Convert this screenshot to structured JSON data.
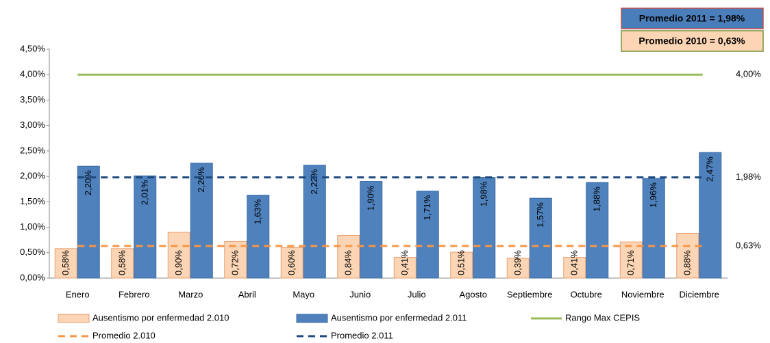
{
  "chart_data": {
    "type": "bar",
    "categories": [
      "Enero",
      "Febrero",
      "Marzo",
      "Abril",
      "Mayo",
      "Junio",
      "Julio",
      "Agosto",
      "Septiembre",
      "Octubre",
      "Noviembre",
      "Diciembre"
    ],
    "series": [
      {
        "name": "Ausentismo por enfermedad 2.010",
        "kind": "bar",
        "color": "#fbd5b5",
        "stroke": "#e8a070",
        "values": [
          0.58,
          0.58,
          0.9,
          0.72,
          0.6,
          0.84,
          0.41,
          0.51,
          0.39,
          0.41,
          0.71,
          0.88
        ],
        "value_labels": [
          "0,58%",
          "0,58%",
          "0,90%",
          "0,72%",
          "0,60%",
          "0,84%",
          "0,41%",
          "0,51%",
          "0,39%",
          "0,41%",
          "0,71%",
          "0,88%"
        ]
      },
      {
        "name": "Ausentismo por enfermedad 2.011",
        "kind": "bar",
        "color": "#4f81bd",
        "stroke": "#3a6aa5",
        "values": [
          2.2,
          2.01,
          2.26,
          1.63,
          2.22,
          1.9,
          1.71,
          1.98,
          1.57,
          1.88,
          1.96,
          2.47
        ],
        "value_labels": [
          "2,20%",
          "2,01%",
          "2,26%",
          "1,63%",
          "2,22%",
          "1,90%",
          "1,71%",
          "1,98%",
          "1,57%",
          "1,88%",
          "1,96%",
          "2,47%"
        ]
      },
      {
        "name": "Rango Max CEPIS",
        "kind": "line",
        "color": "#9bbb59",
        "dash": false,
        "value": 4.0,
        "value_label": "4,00%",
        "label_color": "#4cae4c"
      },
      {
        "name": "Promedio 2.010",
        "kind": "line",
        "color": "#f79646",
        "dash": true,
        "value": 0.63,
        "value_label": "0,63%",
        "label_color": "#e46c0a"
      },
      {
        "name": "Promedio 2.011",
        "kind": "line",
        "color": "#1f497d",
        "dash": true,
        "value": 1.98,
        "value_label": "1,98%",
        "label_color": "#1f497d"
      }
    ],
    "ylim": [
      0,
      4.5
    ],
    "yticks": [
      {
        "value": 0,
        "label": "0,00%"
      },
      {
        "value": 0.5,
        "label": "0,50%"
      },
      {
        "value": 1,
        "label": "1,00%"
      },
      {
        "value": 1.5,
        "label": "1,50%"
      },
      {
        "value": 2,
        "label": "2,00%"
      },
      {
        "value": 2.5,
        "label": "2,50%"
      },
      {
        "value": 3,
        "label": "3,00%"
      },
      {
        "value": 3.5,
        "label": "3,50%"
      },
      {
        "value": 4,
        "label": "4,00%"
      },
      {
        "value": 4.5,
        "label": "4,50%"
      }
    ],
    "grid": false,
    "annotations": [
      {
        "text": "Promedio 2011 = 1,98%",
        "background": "#4a7ebb",
        "border": "#c0504d",
        "color": "#ffffff"
      },
      {
        "text": "Promedio 2010 = 0,63%",
        "background": "#fcd5b4",
        "border": "#77933c",
        "color": "#e46c0a"
      }
    ]
  }
}
